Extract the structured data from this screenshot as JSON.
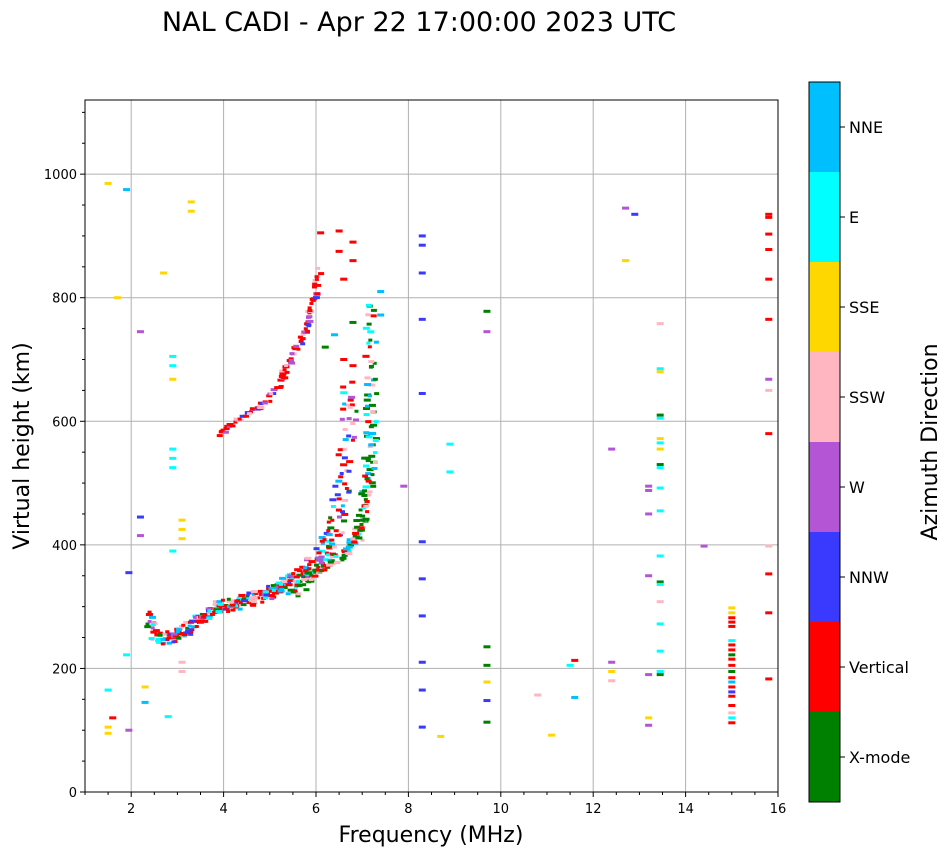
{
  "chart_data": {
    "type": "scatter",
    "title": "NAL CADI - Apr 22 17:00:00 2023 UTC",
    "xlabel": "Frequency (MHz)",
    "ylabel": "Virtual height (km)",
    "xlim": [
      1,
      16
    ],
    "ylim": [
      0,
      1120
    ],
    "xticks": [
      2,
      4,
      6,
      8,
      10,
      12,
      14,
      16
    ],
    "yticks": [
      0,
      200,
      400,
      600,
      800,
      1000
    ],
    "grid": true,
    "colorbar": {
      "label": "Azimuth Direction",
      "categories": [
        {
          "name": "X-mode",
          "color": "#008000"
        },
        {
          "name": "Vertical",
          "color": "#ff0000"
        },
        {
          "name": "NNW",
          "color": "#3a3aff"
        },
        {
          "name": "W",
          "color": "#b355d4"
        },
        {
          "name": "SSW",
          "color": "#ffb6c1"
        },
        {
          "name": "SSE",
          "color": "#ffd700"
        },
        {
          "name": "E",
          "color": "#00ffff"
        },
        {
          "name": "NNE",
          "color": "#00bfff"
        }
      ]
    },
    "trace_lower": {
      "note": "lower ionospheric O-mode trace, mixed azimuth echoes",
      "points": [
        [
          2.4,
          290
        ],
        [
          2.6,
          250
        ],
        [
          2.8,
          248
        ],
        [
          3.0,
          255
        ],
        [
          3.2,
          262
        ],
        [
          3.4,
          275
        ],
        [
          3.6,
          285
        ],
        [
          3.8,
          293
        ],
        [
          4.0,
          300
        ],
        [
          4.2,
          305
        ],
        [
          4.4,
          310
        ],
        [
          4.6,
          313
        ],
        [
          4.8,
          318
        ],
        [
          5.0,
          323
        ],
        [
          5.2,
          330
        ],
        [
          5.4,
          338
        ],
        [
          5.6,
          350
        ],
        [
          5.8,
          362
        ],
        [
          6.0,
          375
        ],
        [
          6.2,
          392
        ],
        [
          6.4,
          420
        ],
        [
          6.5,
          460
        ],
        [
          6.6,
          520
        ],
        [
          6.7,
          600
        ],
        [
          6.75,
          660
        ]
      ]
    },
    "trace_upper": {
      "note": "multi-hop reflection trace",
      "points": [
        [
          3.9,
          580
        ],
        [
          4.2,
          600
        ],
        [
          4.6,
          615
        ],
        [
          4.9,
          630
        ],
        [
          5.2,
          660
        ],
        [
          5.4,
          690
        ],
        [
          5.6,
          720
        ],
        [
          5.8,
          750
        ],
        [
          5.9,
          780
        ],
        [
          6.0,
          810
        ],
        [
          6.1,
          850
        ]
      ]
    },
    "trace_xmode": {
      "note": "X-mode trace",
      "points": [
        [
          5.5,
          320
        ],
        [
          5.8,
          345
        ],
        [
          6.1,
          360
        ],
        [
          6.4,
          375
        ],
        [
          6.7,
          390
        ],
        [
          6.9,
          410
        ],
        [
          7.0,
          440
        ],
        [
          7.1,
          480
        ],
        [
          7.15,
          520
        ],
        [
          7.2,
          570
        ],
        [
          7.2,
          620
        ],
        [
          7.2,
          700
        ],
        [
          7.2,
          800
        ]
      ]
    },
    "scattered_points": [
      {
        "x": 1.5,
        "y": 985,
        "c": "SSE"
      },
      {
        "x": 1.9,
        "y": 975,
        "c": "NNE"
      },
      {
        "x": 3.3,
        "y": 955,
        "c": "SSE"
      },
      {
        "x": 3.3,
        "y": 940,
        "c": "SSE"
      },
      {
        "x": 2.7,
        "y": 840,
        "c": "SSE"
      },
      {
        "x": 1.7,
        "y": 800,
        "c": "SSE"
      },
      {
        "x": 2.2,
        "y": 745,
        "c": "W"
      },
      {
        "x": 2.9,
        "y": 705,
        "c": "E"
      },
      {
        "x": 2.9,
        "y": 690,
        "c": "E"
      },
      {
        "x": 2.9,
        "y": 668,
        "c": "SSE"
      },
      {
        "x": 2.9,
        "y": 555,
        "c": "E"
      },
      {
        "x": 2.9,
        "y": 540,
        "c": "E"
      },
      {
        "x": 2.9,
        "y": 525,
        "c": "E"
      },
      {
        "x": 3.1,
        "y": 440,
        "c": "SSE"
      },
      {
        "x": 3.1,
        "y": 425,
        "c": "SSE"
      },
      {
        "x": 3.1,
        "y": 410,
        "c": "SSE"
      },
      {
        "x": 2.2,
        "y": 445,
        "c": "NNW"
      },
      {
        "x": 2.2,
        "y": 415,
        "c": "W"
      },
      {
        "x": 2.9,
        "y": 390,
        "c": "E"
      },
      {
        "x": 1.95,
        "y": 355,
        "c": "NNW"
      },
      {
        "x": 3.1,
        "y": 210,
        "c": "SSW"
      },
      {
        "x": 3.1,
        "y": 195,
        "c": "SSW"
      },
      {
        "x": 1.9,
        "y": 222,
        "c": "E"
      },
      {
        "x": 2.3,
        "y": 145,
        "c": "NNE"
      },
      {
        "x": 2.3,
        "y": 170,
        "c": "SSE"
      },
      {
        "x": 2.8,
        "y": 122,
        "c": "E"
      },
      {
        "x": 1.5,
        "y": 165,
        "c": "E"
      },
      {
        "x": 1.6,
        "y": 120,
        "c": "Vertical"
      },
      {
        "x": 1.5,
        "y": 105,
        "c": "SSE"
      },
      {
        "x": 1.5,
        "y": 95,
        "c": "SSE"
      },
      {
        "x": 1.95,
        "y": 100,
        "c": "W"
      },
      {
        "x": 8.3,
        "y": 900,
        "c": "NNW"
      },
      {
        "x": 8.3,
        "y": 885,
        "c": "NNW"
      },
      {
        "x": 8.3,
        "y": 840,
        "c": "NNW"
      },
      {
        "x": 8.3,
        "y": 765,
        "c": "NNW"
      },
      {
        "x": 8.3,
        "y": 645,
        "c": "NNW"
      },
      {
        "x": 8.3,
        "y": 405,
        "c": "NNW"
      },
      {
        "x": 8.3,
        "y": 345,
        "c": "NNW"
      },
      {
        "x": 8.3,
        "y": 285,
        "c": "NNW"
      },
      {
        "x": 8.3,
        "y": 210,
        "c": "NNW"
      },
      {
        "x": 8.3,
        "y": 165,
        "c": "NNW"
      },
      {
        "x": 8.3,
        "y": 105,
        "c": "NNW"
      },
      {
        "x": 8.7,
        "y": 90,
        "c": "SSE"
      },
      {
        "x": 8.9,
        "y": 563,
        "c": "E"
      },
      {
        "x": 8.9,
        "y": 518,
        "c": "E"
      },
      {
        "x": 7.9,
        "y": 495,
        "c": "W"
      },
      {
        "x": 9.7,
        "y": 778,
        "c": "X-mode"
      },
      {
        "x": 9.7,
        "y": 745,
        "c": "W"
      },
      {
        "x": 9.7,
        "y": 235,
        "c": "X-mode"
      },
      {
        "x": 9.7,
        "y": 205,
        "c": "X-mode"
      },
      {
        "x": 9.7,
        "y": 178,
        "c": "SSE"
      },
      {
        "x": 9.7,
        "y": 148,
        "c": "NNW"
      },
      {
        "x": 9.7,
        "y": 113,
        "c": "X-mode"
      },
      {
        "x": 10.8,
        "y": 157,
        "c": "SSW"
      },
      {
        "x": 11.1,
        "y": 92,
        "c": "SSE"
      },
      {
        "x": 11.6,
        "y": 213,
        "c": "Vertical"
      },
      {
        "x": 11.5,
        "y": 205,
        "c": "E"
      },
      {
        "x": 11.6,
        "y": 153,
        "c": "NNE"
      },
      {
        "x": 12.4,
        "y": 555,
        "c": "W"
      },
      {
        "x": 12.4,
        "y": 210,
        "c": "W"
      },
      {
        "x": 12.4,
        "y": 195,
        "c": "SSE"
      },
      {
        "x": 12.4,
        "y": 180,
        "c": "SSW"
      },
      {
        "x": 12.7,
        "y": 945,
        "c": "W"
      },
      {
        "x": 12.9,
        "y": 935,
        "c": "NNW"
      },
      {
        "x": 12.7,
        "y": 860,
        "c": "SSE"
      },
      {
        "x": 13.2,
        "y": 495,
        "c": "W"
      },
      {
        "x": 13.2,
        "y": 488,
        "c": "W"
      },
      {
        "x": 13.2,
        "y": 450,
        "c": "W"
      },
      {
        "x": 13.2,
        "y": 350,
        "c": "W"
      },
      {
        "x": 13.2,
        "y": 190,
        "c": "W"
      },
      {
        "x": 13.2,
        "y": 120,
        "c": "SSE"
      },
      {
        "x": 13.2,
        "y": 108,
        "c": "W"
      },
      {
        "x": 13.45,
        "y": 758,
        "c": "SSW"
      },
      {
        "x": 13.45,
        "y": 685,
        "c": "E"
      },
      {
        "x": 13.45,
        "y": 680,
        "c": "SSE"
      },
      {
        "x": 13.45,
        "y": 610,
        "c": "X-mode"
      },
      {
        "x": 13.45,
        "y": 605,
        "c": "E"
      },
      {
        "x": 13.45,
        "y": 572,
        "c": "SSE"
      },
      {
        "x": 13.45,
        "y": 565,
        "c": "E"
      },
      {
        "x": 13.45,
        "y": 555,
        "c": "SSE"
      },
      {
        "x": 13.45,
        "y": 530,
        "c": "X-mode"
      },
      {
        "x": 13.45,
        "y": 525,
        "c": "E"
      },
      {
        "x": 13.45,
        "y": 492,
        "c": "E"
      },
      {
        "x": 13.45,
        "y": 455,
        "c": "E"
      },
      {
        "x": 13.45,
        "y": 382,
        "c": "E"
      },
      {
        "x": 13.45,
        "y": 340,
        "c": "X-mode"
      },
      {
        "x": 13.45,
        "y": 336,
        "c": "E"
      },
      {
        "x": 13.45,
        "y": 308,
        "c": "SSW"
      },
      {
        "x": 13.45,
        "y": 272,
        "c": "E"
      },
      {
        "x": 13.45,
        "y": 228,
        "c": "E"
      },
      {
        "x": 13.45,
        "y": 195,
        "c": "E"
      },
      {
        "x": 13.45,
        "y": 190,
        "c": "X-mode"
      },
      {
        "x": 14.4,
        "y": 398,
        "c": "W"
      },
      {
        "x": 15.0,
        "y": 298,
        "c": "SSE"
      },
      {
        "x": 15.0,
        "y": 290,
        "c": "SSE"
      },
      {
        "x": 15.0,
        "y": 282,
        "c": "Vertical"
      },
      {
        "x": 15.0,
        "y": 275,
        "c": "Vertical"
      },
      {
        "x": 15.0,
        "y": 268,
        "c": "Vertical"
      },
      {
        "x": 15.0,
        "y": 245,
        "c": "E"
      },
      {
        "x": 15.0,
        "y": 238,
        "c": "Vertical"
      },
      {
        "x": 15.0,
        "y": 230,
        "c": "Vertical"
      },
      {
        "x": 15.0,
        "y": 222,
        "c": "X-mode"
      },
      {
        "x": 15.0,
        "y": 215,
        "c": "Vertical"
      },
      {
        "x": 15.0,
        "y": 205,
        "c": "Vertical"
      },
      {
        "x": 15.0,
        "y": 195,
        "c": "X-mode"
      },
      {
        "x": 15.0,
        "y": 185,
        "c": "Vertical"
      },
      {
        "x": 15.0,
        "y": 178,
        "c": "NNE"
      },
      {
        "x": 15.0,
        "y": 170,
        "c": "Vertical"
      },
      {
        "x": 15.0,
        "y": 162,
        "c": "NNW"
      },
      {
        "x": 15.0,
        "y": 155,
        "c": "Vertical"
      },
      {
        "x": 15.0,
        "y": 140,
        "c": "Vertical"
      },
      {
        "x": 15.0,
        "y": 128,
        "c": "SSW"
      },
      {
        "x": 15.0,
        "y": 120,
        "c": "E"
      },
      {
        "x": 15.0,
        "y": 112,
        "c": "Vertical"
      },
      {
        "x": 15.8,
        "y": 935,
        "c": "Vertical"
      },
      {
        "x": 15.8,
        "y": 930,
        "c": "Vertical"
      },
      {
        "x": 15.8,
        "y": 903,
        "c": "Vertical"
      },
      {
        "x": 15.8,
        "y": 878,
        "c": "Vertical"
      },
      {
        "x": 15.8,
        "y": 830,
        "c": "Vertical"
      },
      {
        "x": 15.8,
        "y": 765,
        "c": "Vertical"
      },
      {
        "x": 15.8,
        "y": 668,
        "c": "W"
      },
      {
        "x": 15.8,
        "y": 650,
        "c": "SSW"
      },
      {
        "x": 15.8,
        "y": 580,
        "c": "Vertical"
      },
      {
        "x": 15.8,
        "y": 398,
        "c": "SSW"
      },
      {
        "x": 15.8,
        "y": 353,
        "c": "Vertical"
      },
      {
        "x": 15.8,
        "y": 290,
        "c": "Vertical"
      },
      {
        "x": 15.8,
        "y": 183,
        "c": "Vertical"
      },
      {
        "x": 6.1,
        "y": 905,
        "c": "Vertical"
      },
      {
        "x": 6.5,
        "y": 908,
        "c": "Vertical"
      },
      {
        "x": 6.8,
        "y": 890,
        "c": "Vertical"
      },
      {
        "x": 6.5,
        "y": 875,
        "c": "Vertical"
      },
      {
        "x": 6.8,
        "y": 860,
        "c": "Vertical"
      },
      {
        "x": 6.6,
        "y": 830,
        "c": "Vertical"
      },
      {
        "x": 7.4,
        "y": 810,
        "c": "NNE"
      },
      {
        "x": 7.4,
        "y": 772,
        "c": "NNE"
      },
      {
        "x": 6.2,
        "y": 720,
        "c": "X-mode"
      },
      {
        "x": 6.4,
        "y": 740,
        "c": "NNE"
      },
      {
        "x": 6.8,
        "y": 760,
        "c": "X-mode"
      },
      {
        "x": 6.6,
        "y": 700,
        "c": "Vertical"
      },
      {
        "x": 6.8,
        "y": 690,
        "c": "Vertical"
      }
    ]
  }
}
